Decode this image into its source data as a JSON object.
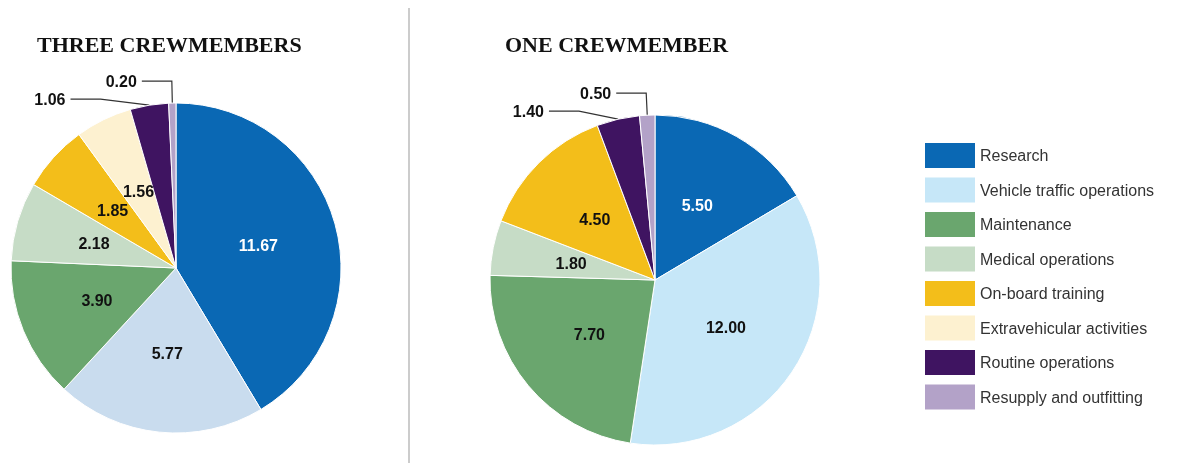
{
  "chart_data": [
    {
      "type": "pie",
      "title": "THREE CREWMEMBERS",
      "categories": [
        null,
        null,
        null,
        null,
        null,
        null,
        null,
        null
      ],
      "values": [
        11.67,
        5.77,
        3.9,
        2.18,
        1.85,
        1.56,
        1.06,
        0.2
      ],
      "value_labels": [
        "11.67",
        "5.77",
        "3.90",
        "2.18",
        "1.85",
        "1.56",
        "1.06",
        "0.20"
      ],
      "colors": [
        "#0a68b4",
        "#c9dcee",
        "#6aa66e",
        "#c6dcc6",
        "#f3be1a",
        "#fdf1d0",
        "#3f1461",
        "#b3a2c8"
      ],
      "legend": false
    },
    {
      "type": "pie",
      "title": "ONE CREWMEMBER",
      "categories": [
        "Research",
        "Vehicle traffic operations",
        "Maintenance",
        "Medical operations",
        "On-board training",
        "Extravehicular activities",
        "Routine operations",
        "Resupply and outfitting"
      ],
      "values": [
        5.5,
        12.0,
        7.7,
        1.8,
        4.5,
        null,
        1.4,
        0.5
      ],
      "value_labels": [
        "5.50",
        "12.00",
        "7.70",
        "1.80",
        "4.50",
        null,
        "1.40",
        "0.50"
      ],
      "colors": [
        "#0a68b4",
        "#c6e7f8",
        "#6aa66e",
        "#c6dcc6",
        "#f3be1a",
        "#fdf1d0",
        "#3f1461",
        "#b3a2c8"
      ],
      "legend": "right"
    }
  ]
}
